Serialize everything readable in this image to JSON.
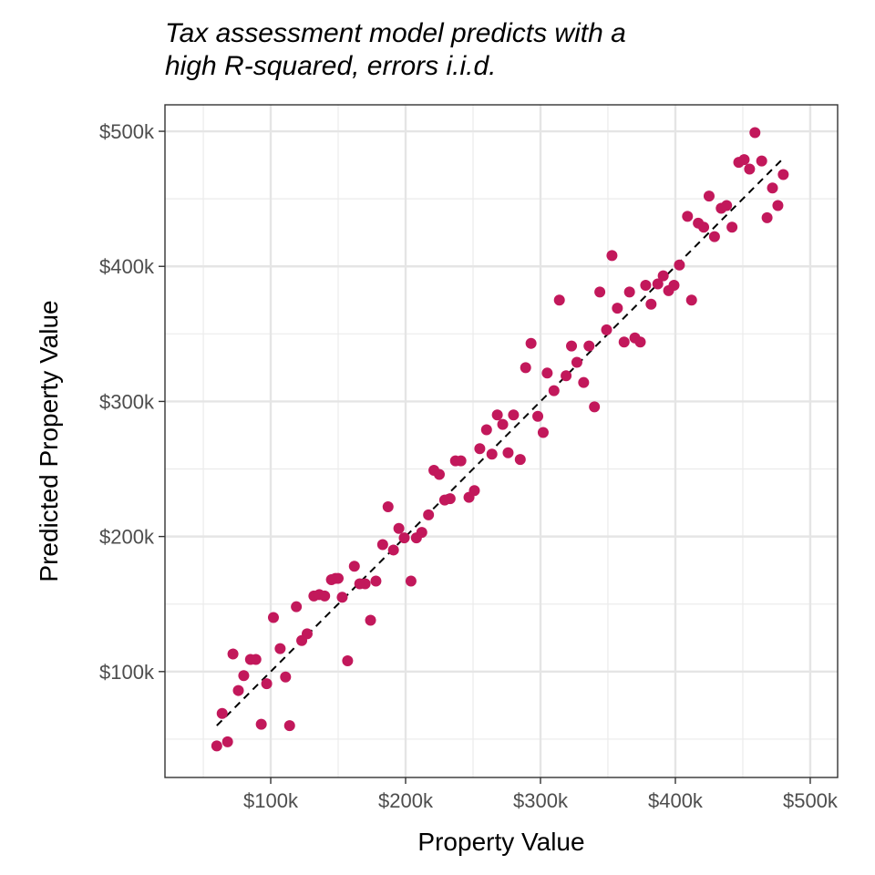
{
  "chart_data": {
    "type": "scatter",
    "title": [
      "Tax assessment model predicts with a",
      "high R-squared, errors i.i.d."
    ],
    "xlabel": "Property Value",
    "ylabel": "Predicted Property Value",
    "units": "thousands of dollars",
    "xlim": [
      21.6,
      520.3
    ],
    "ylim": [
      21.6,
      519.6
    ],
    "x_ticks": [
      100,
      200,
      300,
      400,
      500
    ],
    "x_tick_labels": [
      "$100k",
      "$200k",
      "$300k",
      "$400k",
      "$500k"
    ],
    "y_ticks": [
      100,
      200,
      300,
      400,
      500
    ],
    "y_tick_labels": [
      "$100k",
      "$200k",
      "$300k",
      "$400k",
      "$500k"
    ],
    "minor_grid": [
      50,
      150,
      250,
      350,
      450
    ],
    "grid": true,
    "theme": "bw",
    "point_color": "#C2185B",
    "reference_line": {
      "style": "dashed",
      "color": "#000000",
      "from": [
        60,
        60
      ],
      "to": [
        480,
        480
      ]
    },
    "points": [
      [
        60,
        45
      ],
      [
        68,
        48
      ],
      [
        64,
        69
      ],
      [
        72,
        113
      ],
      [
        76,
        86
      ],
      [
        80,
        97
      ],
      [
        85,
        109
      ],
      [
        89,
        109
      ],
      [
        93,
        61
      ],
      [
        97,
        91
      ],
      [
        102,
        140
      ],
      [
        107,
        117
      ],
      [
        111,
        96
      ],
      [
        114,
        60
      ],
      [
        119,
        148
      ],
      [
        123,
        123
      ],
      [
        127,
        128
      ],
      [
        132,
        156
      ],
      [
        136,
        157
      ],
      [
        140,
        156
      ],
      [
        145,
        168
      ],
      [
        148,
        169
      ],
      [
        150,
        169
      ],
      [
        153,
        155
      ],
      [
        157,
        108
      ],
      [
        162,
        178
      ],
      [
        166,
        165
      ],
      [
        170,
        165
      ],
      [
        174,
        138
      ],
      [
        178,
        167
      ],
      [
        183,
        194
      ],
      [
        187,
        222
      ],
      [
        191,
        190
      ],
      [
        195,
        206
      ],
      [
        199,
        199
      ],
      [
        204,
        167
      ],
      [
        208,
        199
      ],
      [
        212,
        203
      ],
      [
        217,
        216
      ],
      [
        221,
        249
      ],
      [
        225,
        246
      ],
      [
        229,
        227
      ],
      [
        233,
        228
      ],
      [
        237,
        256
      ],
      [
        241,
        256
      ],
      [
        247,
        229
      ],
      [
        251,
        234
      ],
      [
        255,
        265
      ],
      [
        260,
        279
      ],
      [
        264,
        261
      ],
      [
        268,
        290
      ],
      [
        272,
        283
      ],
      [
        276,
        262
      ],
      [
        280,
        290
      ],
      [
        285,
        257
      ],
      [
        289,
        325
      ],
      [
        293,
        343
      ],
      [
        298,
        289
      ],
      [
        302,
        277
      ],
      [
        305,
        321
      ],
      [
        310,
        308
      ],
      [
        314,
        375
      ],
      [
        319,
        319
      ],
      [
        323,
        341
      ],
      [
        327,
        329
      ],
      [
        332,
        314
      ],
      [
        336,
        341
      ],
      [
        340,
        296
      ],
      [
        344,
        381
      ],
      [
        349,
        353
      ],
      [
        353,
        408
      ],
      [
        357,
        369
      ],
      [
        362,
        344
      ],
      [
        366,
        381
      ],
      [
        370,
        347
      ],
      [
        374,
        344
      ],
      [
        378,
        386
      ],
      [
        382,
        372
      ],
      [
        387,
        387
      ],
      [
        391,
        393
      ],
      [
        395,
        382
      ],
      [
        399,
        386
      ],
      [
        403,
        401
      ],
      [
        409,
        437
      ],
      [
        412,
        375
      ],
      [
        417,
        432
      ],
      [
        421,
        429
      ],
      [
        425,
        452
      ],
      [
        429,
        422
      ],
      [
        434,
        443
      ],
      [
        438,
        445
      ],
      [
        442,
        429
      ],
      [
        447,
        477
      ],
      [
        451,
        479
      ],
      [
        455,
        472
      ],
      [
        459,
        499
      ],
      [
        464,
        478
      ],
      [
        468,
        436
      ],
      [
        472,
        458
      ],
      [
        476,
        445
      ],
      [
        480,
        468
      ]
    ]
  }
}
